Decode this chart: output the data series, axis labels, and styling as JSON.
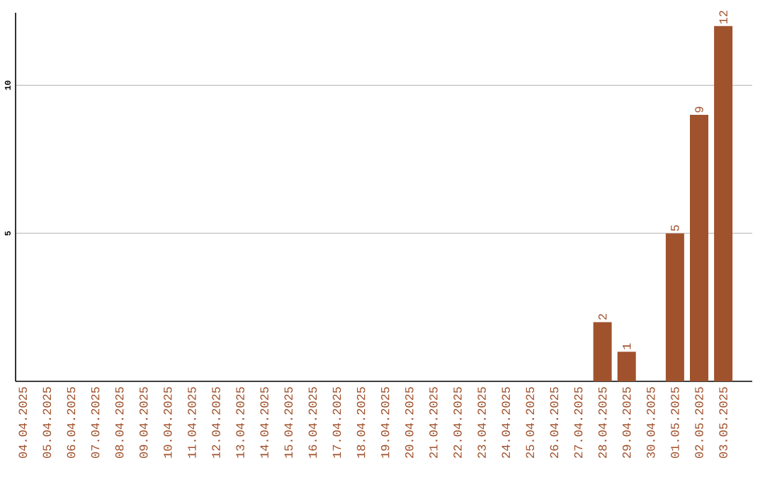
{
  "chart_data": {
    "type": "bar",
    "categories": [
      "04.04.2025",
      "05.04.2025",
      "06.04.2025",
      "07.04.2025",
      "08.04.2025",
      "09.04.2025",
      "10.04.2025",
      "11.04.2025",
      "12.04.2025",
      "13.04.2025",
      "14.04.2025",
      "15.04.2025",
      "16.04.2025",
      "17.04.2025",
      "18.04.2025",
      "19.04.2025",
      "20.04.2025",
      "21.04.2025",
      "22.04.2025",
      "23.04.2025",
      "24.04.2025",
      "25.04.2025",
      "26.04.2025",
      "27.04.2025",
      "28.04.2025",
      "29.04.2025",
      "30.04.2025",
      "01.05.2025",
      "02.05.2025",
      "03.05.2025"
    ],
    "values": [
      0,
      0,
      0,
      0,
      0,
      0,
      0,
      0,
      0,
      0,
      0,
      0,
      0,
      0,
      0,
      0,
      0,
      0,
      0,
      0,
      0,
      0,
      0,
      0,
      2,
      1,
      0,
      5,
      9,
      12
    ],
    "value_labels": [
      null,
      null,
      null,
      null,
      null,
      null,
      null,
      null,
      null,
      null,
      null,
      null,
      null,
      null,
      null,
      null,
      null,
      null,
      null,
      null,
      null,
      null,
      null,
      null,
      "2",
      "1",
      null,
      "5",
      "9",
      "12"
    ],
    "color": "#a0522d",
    "ylim": [
      0,
      12.45
    ],
    "yticks": [
      5,
      10
    ],
    "grid": "y"
  }
}
